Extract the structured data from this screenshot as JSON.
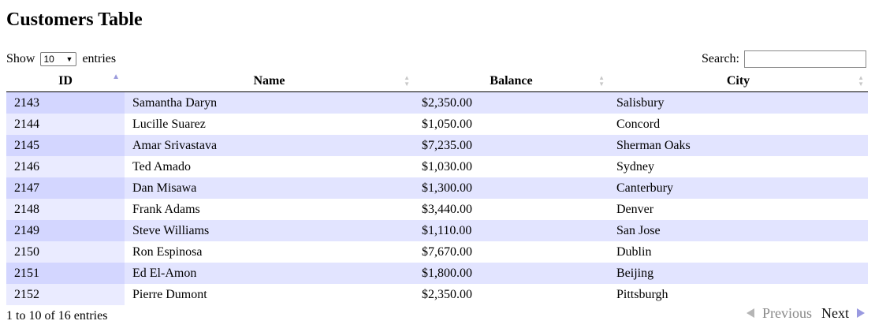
{
  "title": "Customers Table",
  "length_menu": {
    "prefix": "Show",
    "selected": "10",
    "suffix": "entries"
  },
  "search": {
    "label": "Search:",
    "value": ""
  },
  "columns": [
    {
      "label": "ID",
      "sort": "ascending"
    },
    {
      "label": "Name",
      "sort": "none"
    },
    {
      "label": "Balance",
      "sort": "none"
    },
    {
      "label": "City",
      "sort": "none"
    }
  ],
  "rows": [
    {
      "id": "2143",
      "name": "Samantha Daryn",
      "balance": "$2,350.00",
      "city": "Salisbury"
    },
    {
      "id": "2144",
      "name": "Lucille Suarez",
      "balance": "$1,050.00",
      "city": "Concord"
    },
    {
      "id": "2145",
      "name": "Amar Srivastava",
      "balance": "$7,235.00",
      "city": "Sherman Oaks"
    },
    {
      "id": "2146",
      "name": "Ted Amado",
      "balance": "$1,030.00",
      "city": "Sydney"
    },
    {
      "id": "2147",
      "name": "Dan Misawa",
      "balance": "$1,300.00",
      "city": "Canterbury"
    },
    {
      "id": "2148",
      "name": "Frank Adams",
      "balance": "$3,440.00",
      "city": "Denver"
    },
    {
      "id": "2149",
      "name": "Steve Williams",
      "balance": "$1,110.00",
      "city": "San Jose"
    },
    {
      "id": "2150",
      "name": "Ron Espinosa",
      "balance": "$7,670.00",
      "city": "Dublin"
    },
    {
      "id": "2151",
      "name": "Ed El-Amon",
      "balance": "$1,800.00",
      "city": "Beijing"
    },
    {
      "id": "2152",
      "name": "Pierre Dumont",
      "balance": "$2,350.00",
      "city": "Pittsburgh"
    }
  ],
  "info": "1 to 10 of 16 entries",
  "pagination": {
    "previous": "Previous",
    "next": "Next"
  },
  "colors": {
    "odd_row": "#e2e4ff",
    "even_row": "#ffffff",
    "sorted_column_odd": "#d3d6ff",
    "sorted_column_even": "#eaebff",
    "sort_active": "#9b9bdc"
  }
}
